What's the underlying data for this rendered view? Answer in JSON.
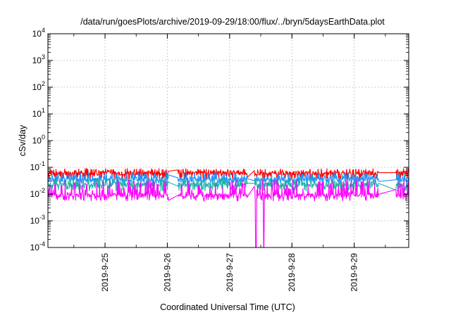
{
  "chart_data": {
    "type": "line",
    "title": "/data/run/goesPlots/archive/2019-09-29/18:00/flux/../bryn/5daysEarthData.plot",
    "xlabel": "Coordinated Universal Time (UTC)",
    "ylabel": "cSv/day",
    "yscale": "log",
    "ylim": [
      0.0001,
      10000
    ],
    "xlim": [
      "2019-09-24T02:00",
      "2019-09-29T21:00"
    ],
    "grid": true,
    "x_ticks": [
      "2019-9-25",
      "2019-9-26",
      "2019-9-27",
      "2019-9-28",
      "2019-9-29"
    ],
    "y_ticks": [
      {
        "base": "10",
        "exp": "-4"
      },
      {
        "base": "10",
        "exp": "-3"
      },
      {
        "base": "10",
        "exp": "-2"
      },
      {
        "base": "10",
        "exp": "-1"
      },
      {
        "base": "10",
        "exp": "0"
      },
      {
        "base": "10",
        "exp": "1"
      },
      {
        "base": "10",
        "exp": "2"
      },
      {
        "base": "10",
        "exp": "3"
      },
      {
        "base": "10",
        "exp": "4"
      }
    ],
    "gaps": [
      [
        "2019-09-26T00:30",
        "2019-09-26T04:00"
      ],
      [
        "2019-09-27T07:00",
        "2019-09-27T09:30"
      ],
      [
        "2019-09-29T09:30",
        "2019-09-29T16:00"
      ]
    ],
    "dropouts": [
      [
        "2019-09-27T10:00",
        "2019-09-27T10:20"
      ],
      [
        "2019-09-27T13:00",
        "2019-09-27T13:15"
      ]
    ],
    "series": [
      {
        "color": "#ff0000",
        "typical": 0.06,
        "low": 0.035,
        "high": 0.09,
        "seed": 11
      },
      {
        "color": "#1e90ff",
        "typical": 0.035,
        "low": 0.022,
        "high": 0.065,
        "seed": 23
      },
      {
        "color": "#20b2aa",
        "typical": 0.022,
        "low": 0.013,
        "high": 0.04,
        "seed": 37
      },
      {
        "color": "#ff00ff",
        "typical": 0.009,
        "low": 0.0055,
        "high": 0.035,
        "seed": 51
      }
    ]
  }
}
